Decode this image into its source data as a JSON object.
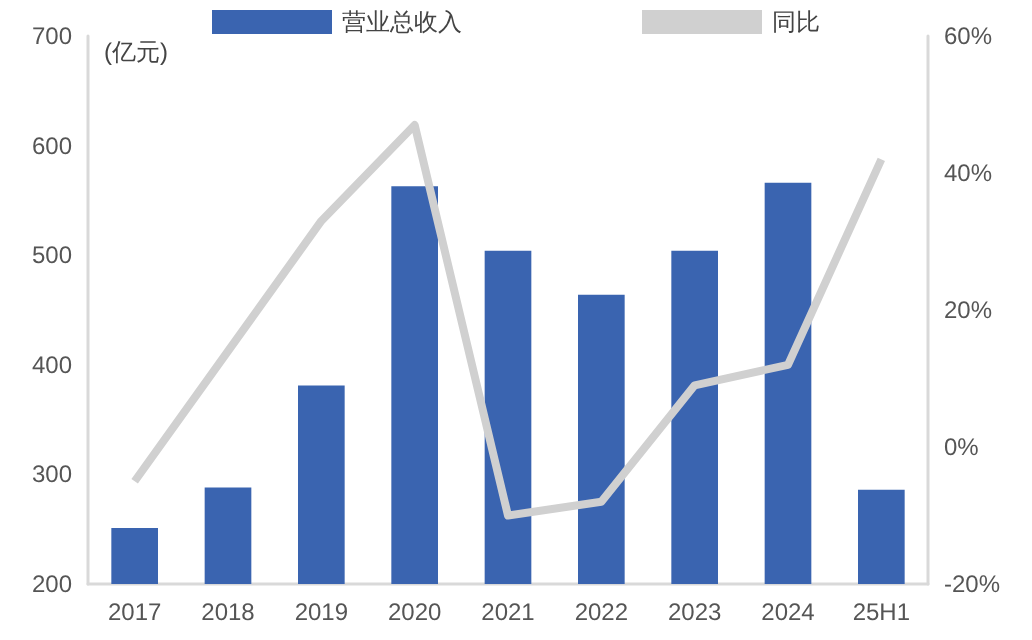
{
  "chart_data": {
    "type": "bar",
    "ylabel": "(亿元)",
    "categories": [
      "2017",
      "2018",
      "2019",
      "2020",
      "2021",
      "2022",
      "2023",
      "2024",
      "25H1"
    ],
    "series": [
      {
        "name": "营业总收入",
        "color": "#3a64b0",
        "values": [
          251,
          288,
          381,
          563,
          504,
          464,
          504,
          566,
          286
        ]
      },
      {
        "name": "同比",
        "type": "line",
        "axis": "y2",
        "color": "#d0d0d0",
        "marker": "none",
        "values": [
          -5,
          14,
          33,
          47,
          -10,
          -8,
          9,
          12,
          42
        ]
      }
    ],
    "ylim": [
      200,
      700
    ],
    "yticks": [
      200,
      300,
      400,
      500,
      600,
      700
    ],
    "y2lim": [
      -20,
      60
    ],
    "y2ticks": [
      {
        "value": -20,
        "label": "-20%"
      },
      {
        "value": 0,
        "label": "0%"
      },
      {
        "value": 20,
        "label": "20%"
      },
      {
        "value": 40,
        "label": "40%"
      },
      {
        "value": 60,
        "label": "60%"
      }
    ],
    "grid": false,
    "legend": "top"
  }
}
